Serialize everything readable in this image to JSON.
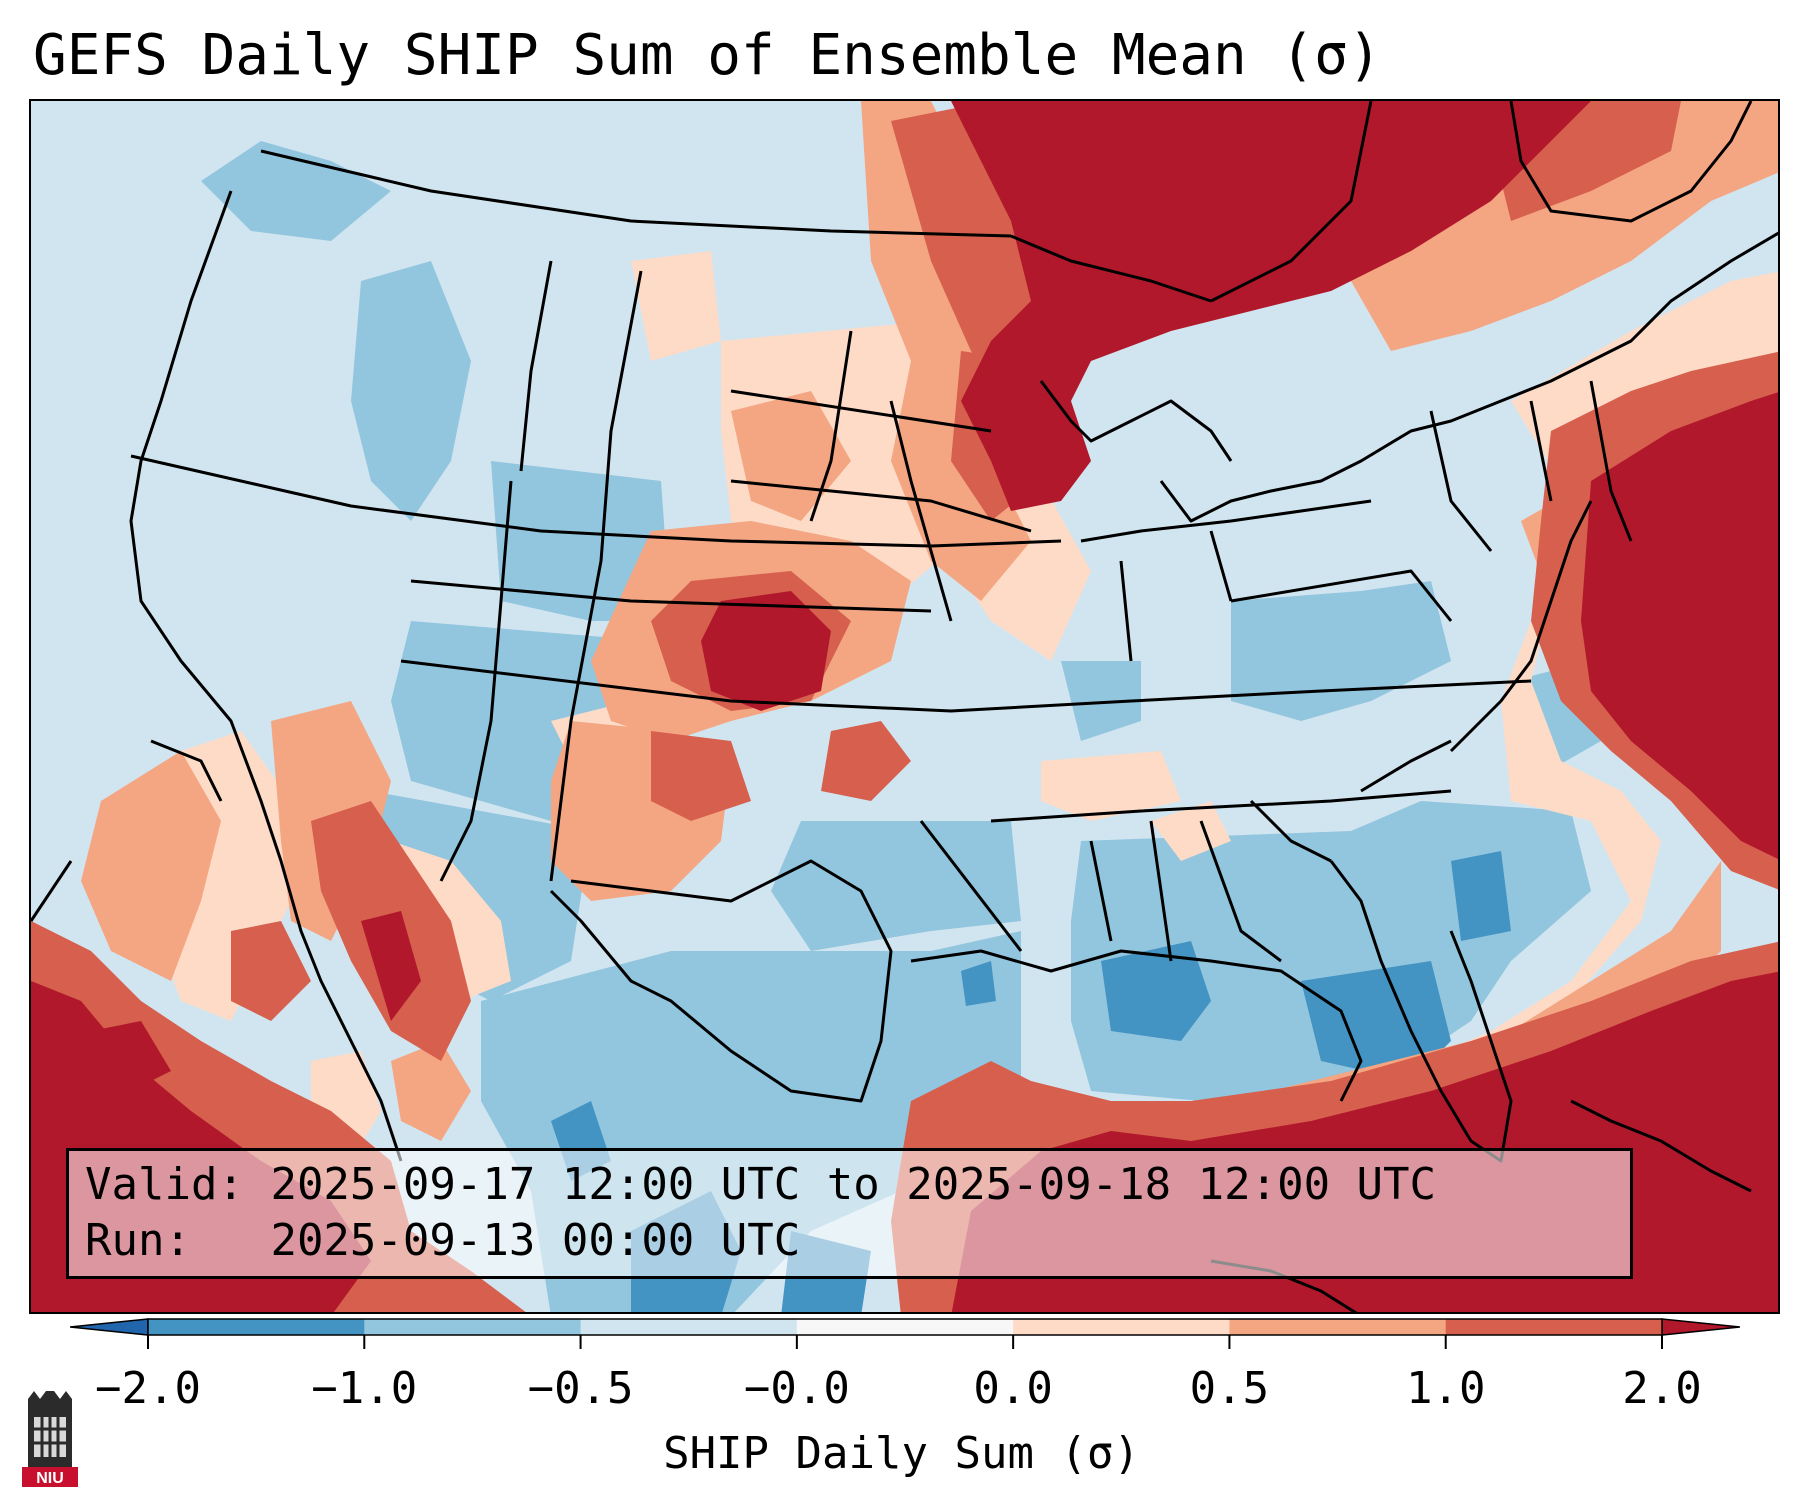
{
  "title": "GEFS Daily SHIP Sum of Ensemble Mean (σ)",
  "info": {
    "valid_label": "Valid:",
    "valid_value": "2025-09-17 12:00 UTC to 2025-09-18 12:00 UTC",
    "run_label": "Run:",
    "run_value": "2025-09-13 00:00 UTC"
  },
  "colorbar": {
    "label": "SHIP Daily Sum (σ)",
    "ticks": [
      "−2.0",
      "−1.0",
      "−0.5",
      "−0.0",
      "0.0",
      "0.5",
      "1.0",
      "2.0"
    ],
    "colors": [
      "#4393c3",
      "#92c5de",
      "#d1e5f0",
      "#f7f7f7",
      "#fddbc7",
      "#f4a582",
      "#d6604d"
    ],
    "under_color": "#2166ac",
    "over_color": "#b2182b",
    "extend": "both"
  },
  "map_colors": {
    "dark_blue": "#2166ac",
    "blue": "#4393c3",
    "light_blue": "#92c5de",
    "pale_blue": "#d1e5f0",
    "white": "#f7f7f7",
    "pale_red": "#fddbc7",
    "light_red": "#f4a582",
    "red": "#d6604d",
    "dark_red": "#b2182b"
  },
  "logo": {
    "text": "NIU",
    "color": "#c8102e"
  }
}
